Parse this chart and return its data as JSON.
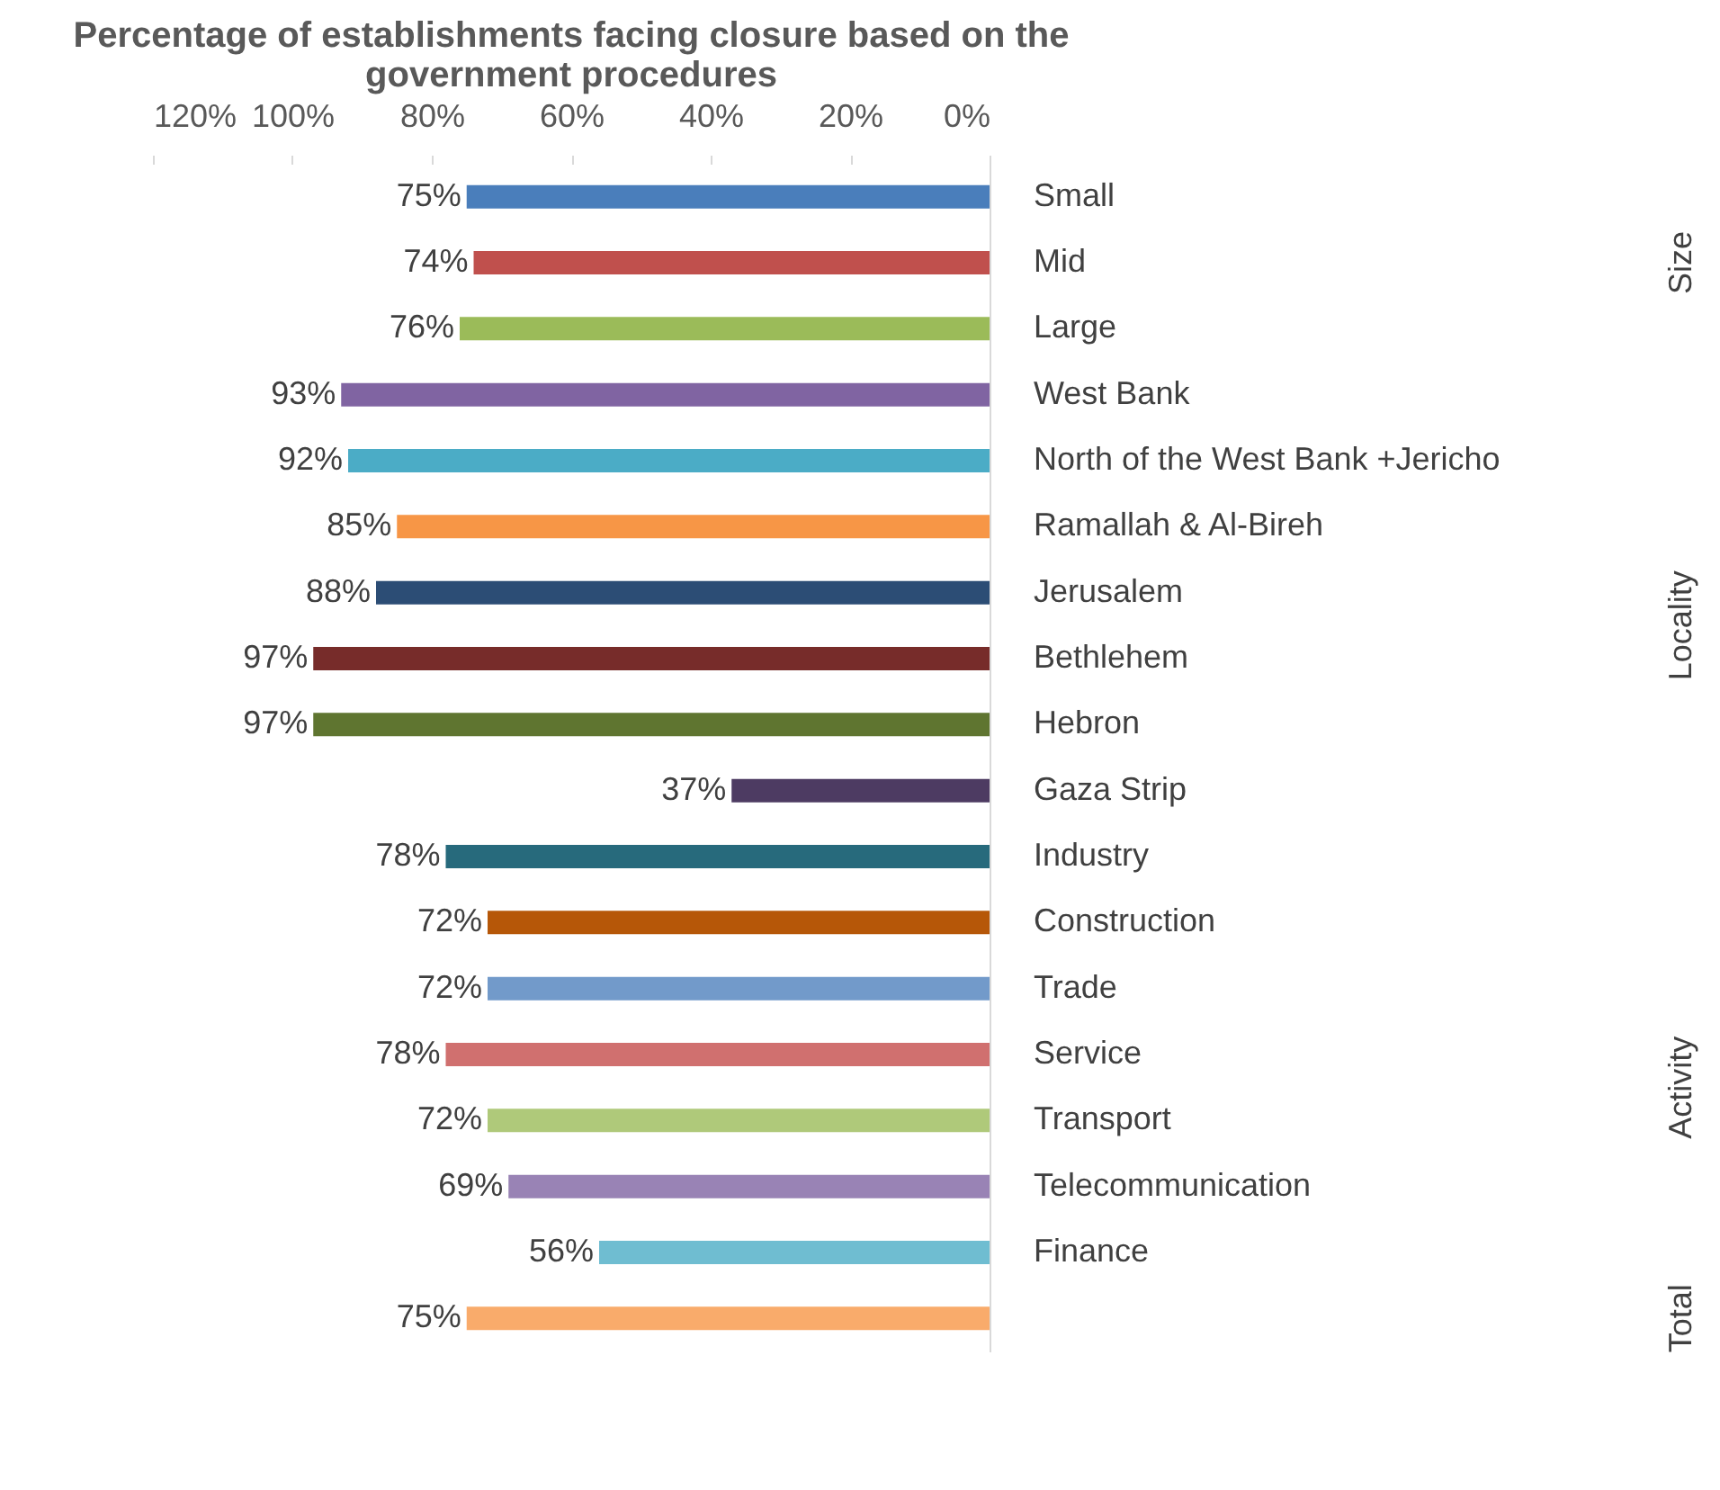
{
  "chart_data": {
    "type": "bar",
    "orientation": "horizontal",
    "title": "Percentage of establishments facing closure based on the government procedures",
    "categories": [
      "Small",
      "Mid",
      "Large",
      "West Bank",
      "North of the West Bank +Jericho",
      "Ramallah & Al-Bireh",
      "Jerusalem",
      "Bethlehem",
      "Hebron",
      "Gaza Strip",
      "Industry",
      "Construction",
      "Trade",
      "Service",
      "Transport",
      "Telecommunication",
      "Finance",
      null
    ],
    "values": [
      75,
      74,
      76,
      93,
      92,
      85,
      88,
      97,
      97,
      37,
      78,
      72,
      72,
      78,
      72,
      69,
      56,
      75
    ],
    "value_labels": [
      "75%",
      "74%",
      "76%",
      "93%",
      "92%",
      "85%",
      "88%",
      "97%",
      "97%",
      "37%",
      "78%",
      "72%",
      "72%",
      "78%",
      "72%",
      "69%",
      "56%",
      "75%"
    ],
    "colors": [
      "#4a7ebb",
      "#c0504d",
      "#9bbb59",
      "#8064a2",
      "#4bacc6",
      "#f79646",
      "#2c4d75",
      "#772c2a",
      "#5f7530",
      "#4d3b62",
      "#276a7c",
      "#b65708",
      "#729aca",
      "#d0706f",
      "#afc97a",
      "#9983b5",
      "#6fbdd1",
      "#f9ab6b"
    ],
    "xlim": [
      120,
      0
    ],
    "xticks": [
      {
        "value": 120,
        "label": "120%"
      },
      {
        "value": 100,
        "label": "100%"
      },
      {
        "value": 80,
        "label": "80%"
      },
      {
        "value": 60,
        "label": "60%"
      },
      {
        "value": 40,
        "label": "40%"
      },
      {
        "value": 20,
        "label": "20%"
      },
      {
        "value": 0,
        "label": "0%"
      }
    ],
    "annotations": [
      "Size",
      "Locality",
      "Activity",
      "Total"
    ],
    "grid": false
  }
}
